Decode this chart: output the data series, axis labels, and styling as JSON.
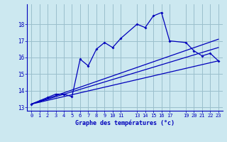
{
  "xlabel": "Graphe des températures (°c)",
  "background_color": "#cce8f0",
  "grid_color": "#9bbfcc",
  "line_color": "#0000bb",
  "xlim": [
    -0.5,
    23.5
  ],
  "ylim": [
    12.8,
    19.2
  ],
  "yticks": [
    13,
    14,
    15,
    16,
    17,
    18
  ],
  "xticks": [
    0,
    1,
    2,
    3,
    4,
    5,
    6,
    7,
    8,
    9,
    10,
    11,
    13,
    14,
    15,
    16,
    17,
    19,
    20,
    21,
    22,
    23
  ],
  "series1_x": [
    0,
    1,
    2,
    3,
    4,
    5,
    6,
    7,
    8,
    9,
    10,
    11,
    13,
    14,
    15,
    16,
    17,
    19,
    20,
    21,
    22,
    23
  ],
  "series1_y": [
    13.2,
    13.4,
    13.6,
    13.8,
    13.8,
    13.65,
    15.9,
    15.5,
    16.5,
    16.9,
    16.6,
    17.15,
    18.0,
    17.8,
    18.5,
    18.7,
    17.0,
    16.9,
    16.4,
    16.1,
    16.25,
    15.8
  ],
  "series2_x": [
    0,
    23
  ],
  "series2_y": [
    13.2,
    15.8
  ],
  "series3_x": [
    0,
    23
  ],
  "series3_y": [
    13.2,
    16.6
  ],
  "series4_x": [
    0,
    23
  ],
  "series4_y": [
    13.2,
    17.1
  ]
}
